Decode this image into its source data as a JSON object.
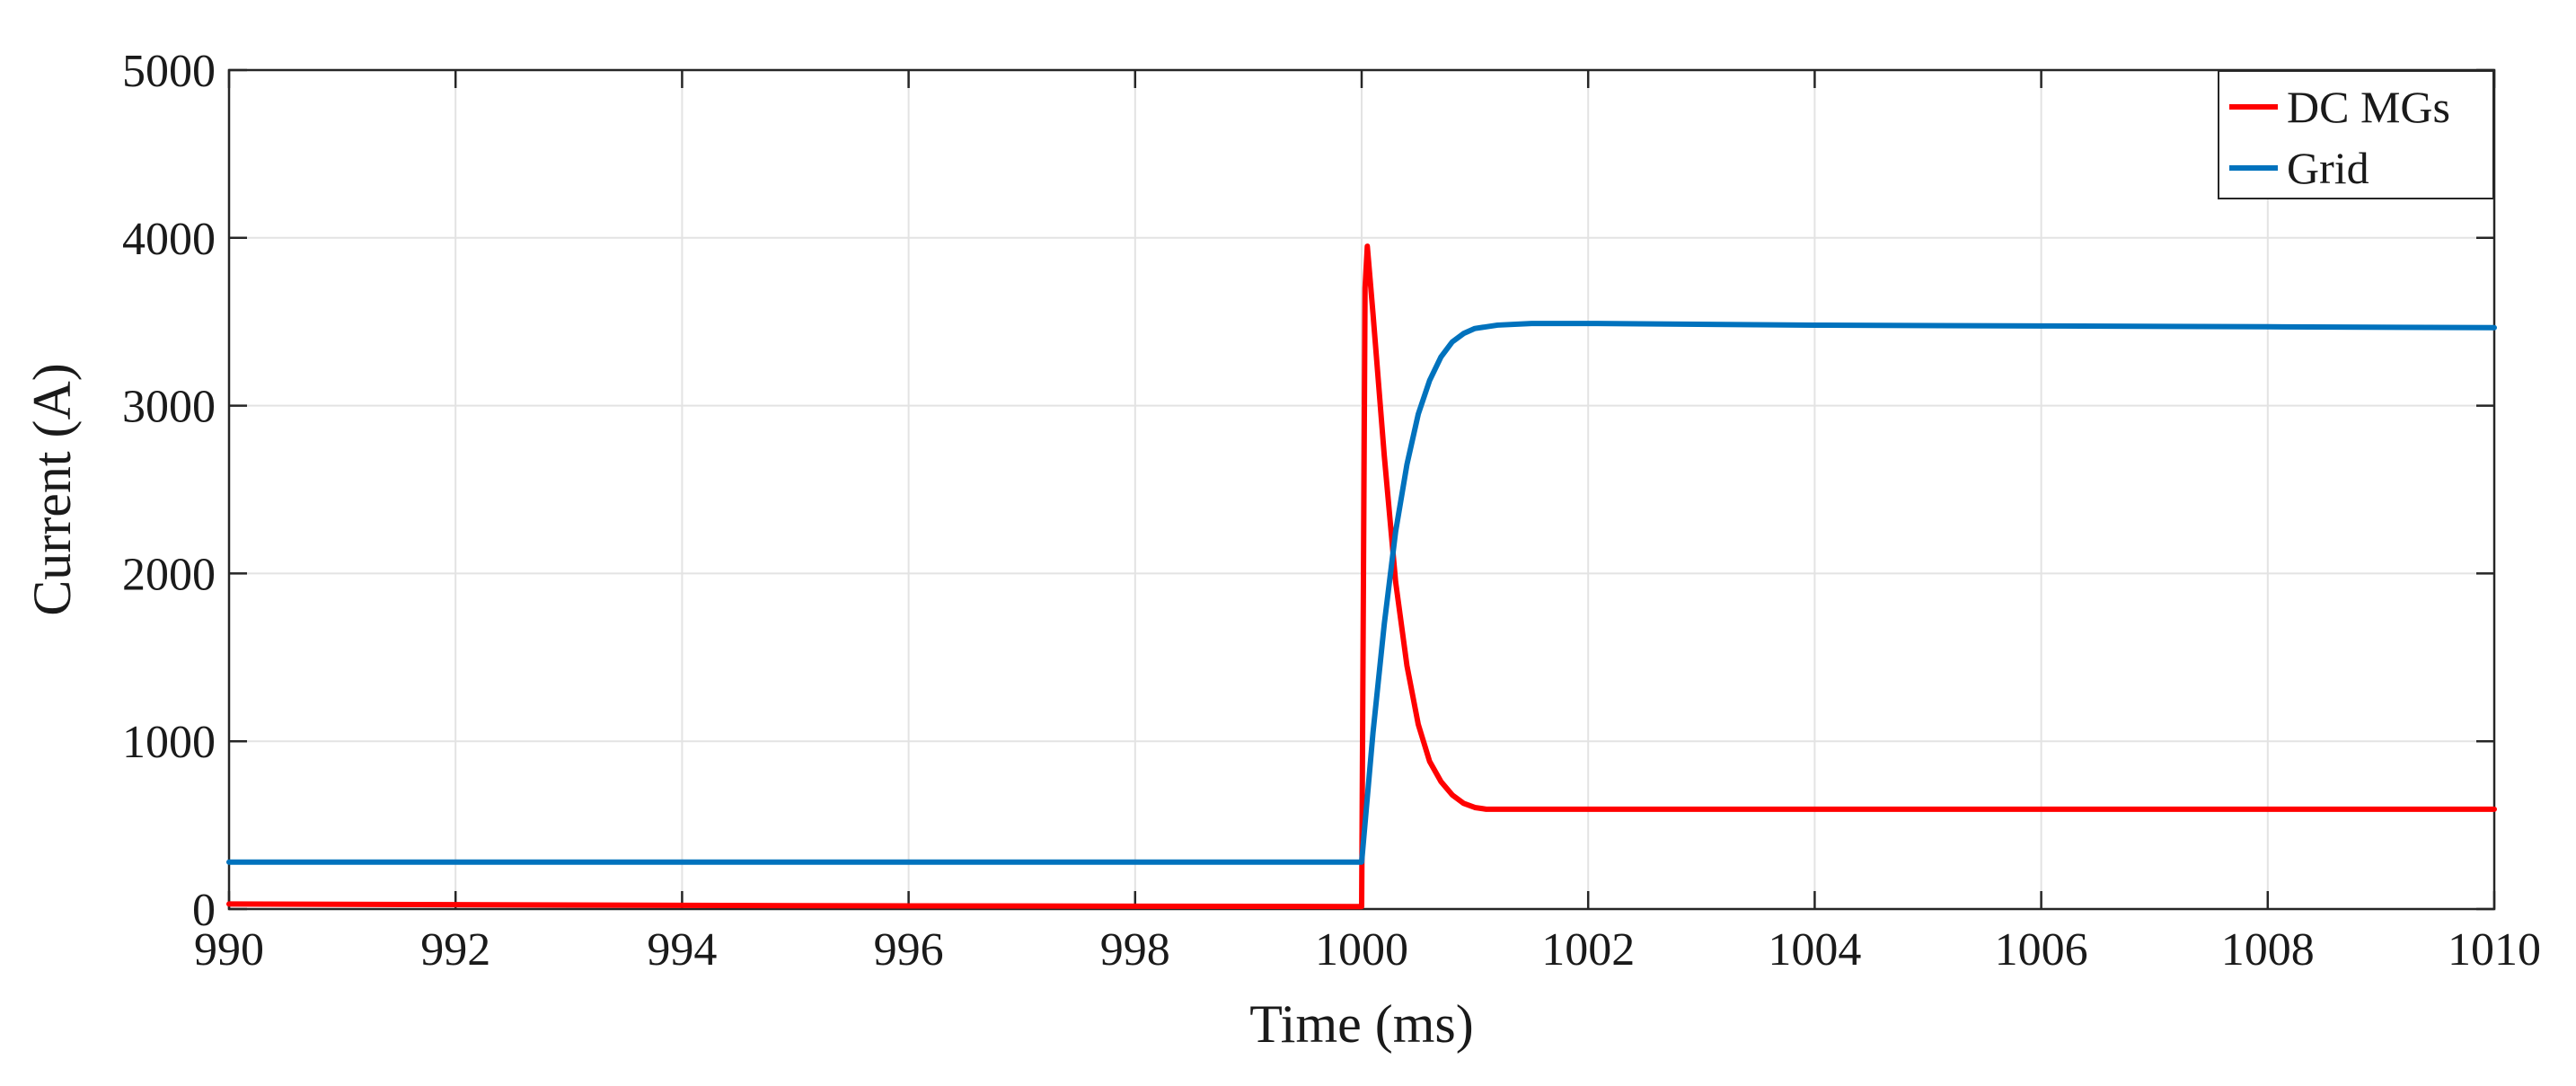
{
  "chart_data": {
    "type": "line",
    "title": "",
    "xlabel": "Time (ms)",
    "ylabel": "Current (A)",
    "xlim": [
      990,
      1010
    ],
    "ylim": [
      0,
      5000
    ],
    "xticks": [
      990,
      992,
      994,
      996,
      998,
      1000,
      1002,
      1004,
      1006,
      1008,
      1010
    ],
    "yticks": [
      0,
      1000,
      2000,
      3000,
      4000,
      5000
    ],
    "grid": true,
    "legend_position": "top-right",
    "series": [
      {
        "name": "DC MGs",
        "color": "#ff0000",
        "x": [
          990,
          995,
          999.99,
          1000,
          1000.03,
          1000.05,
          1000.1,
          1000.2,
          1000.3,
          1000.4,
          1000.5,
          1000.6,
          1000.7,
          1000.8,
          1000.9,
          1001.0,
          1001.1,
          1001.2,
          1002,
          1004,
          1006,
          1008,
          1010
        ],
        "y": [
          30,
          20,
          15,
          15,
          3700,
          3950,
          3550,
          2700,
          1950,
          1450,
          1100,
          880,
          760,
          680,
          630,
          605,
          595,
          595,
          595,
          595,
          595,
          595,
          595
        ]
      },
      {
        "name": "Grid",
        "color": "#0072bd",
        "x": [
          990,
          995,
          999.99,
          1000,
          1000.1,
          1000.2,
          1000.3,
          1000.4,
          1000.5,
          1000.6,
          1000.7,
          1000.8,
          1000.9,
          1001.0,
          1001.2,
          1001.5,
          1002,
          1004,
          1006,
          1008,
          1010
        ],
        "y": [
          280,
          280,
          280,
          280,
          1050,
          1700,
          2250,
          2650,
          2950,
          3150,
          3290,
          3380,
          3430,
          3460,
          3480,
          3490,
          3490,
          3480,
          3475,
          3470,
          3465
        ]
      }
    ]
  }
}
